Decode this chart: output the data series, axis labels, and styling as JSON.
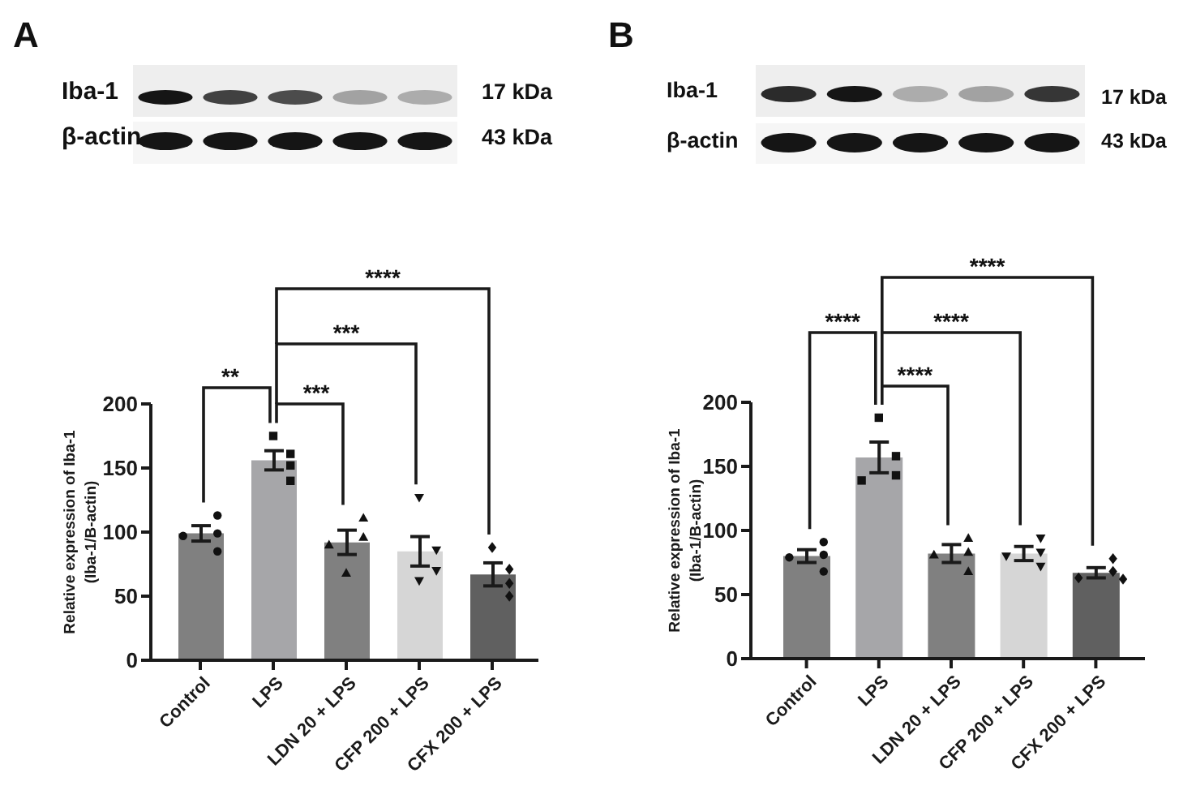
{
  "chart_data": [
    {
      "type": "bar",
      "title": "A",
      "ylabel": "Relative expression of Iba-1\n(Iba-1/B-actin)",
      "categories": [
        "Control",
        "LPS",
        "LDN 20 + LPS",
        "CFP 200 + LPS",
        "CFX 200 + LPS"
      ],
      "ylim": [
        0,
        200
      ],
      "yticks": [
        0,
        50,
        100,
        150,
        200
      ],
      "annotations": [
        "Iba-1",
        "17 kDa",
        "β-actin",
        "43 kDa",
        "****",
        "***",
        "**",
        "***"
      ],
      "series": [
        {
          "type": "bar",
          "colors": [
            "#808080",
            "#a6a6a9",
            "#808080",
            "#d6d6d6",
            "#606060"
          ],
          "values": [
            99,
            156,
            92,
            85,
            67
          ],
          "errors": [
            6,
            7.5,
            9.5,
            11.5,
            9
          ]
        },
        {
          "type": "scatter",
          "marker": "circle",
          "color": "#111111",
          "x": [
            "Control",
            "Control",
            "Control",
            "Control"
          ],
          "values": [
            113,
            99,
            97,
            85
          ]
        },
        {
          "type": "scatter",
          "marker": "square",
          "color": "#111111",
          "x": [
            "LPS",
            "LPS",
            "LPS",
            "LPS"
          ],
          "values": [
            175,
            161,
            152,
            140
          ]
        },
        {
          "type": "scatter",
          "marker": "triangle",
          "color": "#111111",
          "x": [
            "LDN 20 + LPS",
            "LDN 20 + LPS",
            "LDN 20 + LPS",
            "LDN 20 + LPS"
          ],
          "values": [
            111,
            96,
            90,
            68
          ]
        },
        {
          "type": "scatter",
          "marker": "triangle-down",
          "color": "#111111",
          "x": [
            "CFP 200 + LPS",
            "CFP 200 + LPS",
            "CFP 200 + LPS",
            "CFP 200 + LPS"
          ],
          "values": [
            127,
            86,
            70,
            62
          ]
        },
        {
          "type": "scatter",
          "marker": "diamond",
          "color": "#111111",
          "x": [
            "CFX 200 + LPS",
            "CFX 200 + LPS",
            "CFX 200 + LPS",
            "CFX 200 + LPS"
          ],
          "values": [
            88,
            71,
            60,
            50
          ]
        }
      ]
    },
    {
      "type": "bar",
      "title": "B",
      "ylabel": "Relative expression of Iba-1\n(Iba-1/B-actin)",
      "categories": [
        "Control",
        "LPS",
        "LDN 20 + LPS",
        "CFP 200 + LPS",
        "CFX 200 + LPS"
      ],
      "ylim": [
        0,
        200
      ],
      "yticks": [
        0,
        50,
        100,
        150,
        200
      ],
      "annotations": [
        "Iba-1",
        "17 kDa",
        "β-actin",
        "43 kDa",
        "****",
        "****",
        "****",
        "****"
      ],
      "series": [
        {
          "type": "bar",
          "colors": [
            "#808080",
            "#a6a6a9",
            "#808080",
            "#d6d6d6",
            "#606060"
          ],
          "values": [
            80,
            157,
            82,
            82,
            67
          ],
          "errors": [
            5,
            12,
            7,
            5.5,
            4
          ]
        },
        {
          "type": "scatter",
          "marker": "circle",
          "color": "#111111",
          "x": [
            "Control",
            "Control",
            "Control",
            "Control"
          ],
          "values": [
            91,
            81,
            79,
            68
          ]
        },
        {
          "type": "scatter",
          "marker": "square",
          "color": "#111111",
          "x": [
            "LPS",
            "LPS",
            "LPS",
            "LPS"
          ],
          "values": [
            188,
            158,
            143,
            139
          ]
        },
        {
          "type": "scatter",
          "marker": "triangle",
          "color": "#111111",
          "x": [
            "LDN 20 + LPS",
            "LDN 20 + LPS",
            "LDN 20 + LPS",
            "LDN 20 + LPS"
          ],
          "values": [
            94,
            83,
            81,
            68
          ]
        },
        {
          "type": "scatter",
          "marker": "triangle-down",
          "color": "#111111",
          "x": [
            "CFP 200 + LPS",
            "CFP 200 + LPS",
            "CFP 200 + LPS",
            "CFP 200 + LPS"
          ],
          "values": [
            94,
            83,
            80,
            72
          ]
        },
        {
          "type": "scatter",
          "marker": "diamond",
          "color": "#111111",
          "x": [
            "CFX 200 + LPS",
            "CFX 200 + LPS",
            "CFX 200 + LPS",
            "CFX 200 + LPS"
          ],
          "values": [
            78,
            68,
            63,
            62
          ]
        }
      ]
    }
  ]
}
